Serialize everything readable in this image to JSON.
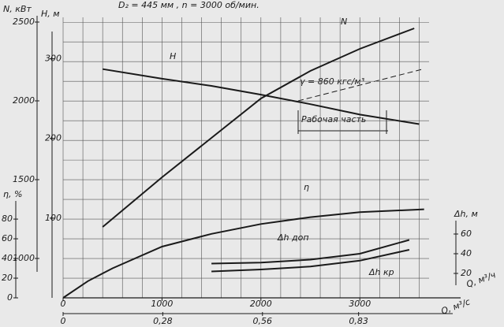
{
  "chart_data": {
    "type": "line",
    "title": "D₂ = 445 мм , n = 3000 об/мин.",
    "x_label": "Q, м³/ч",
    "x2_label": "Q, м³/с",
    "xlim": [
      0,
      3700
    ],
    "xticks": [
      0,
      1000,
      2000,
      3000
    ],
    "xgrid": [
      0,
      200,
      400,
      600,
      800,
      1000,
      1200,
      1400,
      1600,
      1800,
      2000,
      2200,
      2400,
      2600,
      2800,
      3000,
      3200,
      3400,
      3600
    ],
    "x2lim": [
      0,
      1.028
    ],
    "x2ticks": [
      0,
      {
        "value": 0.28,
        "label": "0,28"
      },
      {
        "value": 0.56,
        "label": "0,56"
      },
      {
        "value": 0.83,
        "label": "0,83"
      }
    ],
    "grid": true,
    "annotations": [
      "γ = 860 кгс/м³",
      "Рабочая часть"
    ],
    "axes": [
      {
        "label": "H, м",
        "lim": [
          0,
          352
        ],
        "ticks": [
          100,
          200,
          300
        ],
        "series": [
          {
            "name": "H",
            "color": "#1a1a1a",
            "x": [
              400,
              1000,
              1500,
              2000,
              2500,
              3000,
              3600
            ],
            "values": [
              287,
              275,
              266,
              255,
              243,
              230,
              218
            ]
          }
        ]
      },
      {
        "label": "N, кВт",
        "lim": [
          750,
          2530
        ],
        "ticks": [
          1000,
          1500,
          2000,
          2500
        ],
        "series": [
          {
            "name": "N",
            "color": "#1a1a1a",
            "x": [
              400,
              1000,
              1500,
              2000,
              2500,
              3000,
              3550
            ],
            "values": [
              1200,
              1515,
              1765,
              2015,
              2190,
              2330,
              2460
            ]
          }
        ]
      },
      {
        "label": "η, %",
        "lim": [
          0,
          285
        ],
        "ticks": [
          0,
          20,
          40,
          60,
          80
        ],
        "grid": [
          0,
          20,
          40,
          60,
          80,
          100,
          120,
          140,
          160,
          180,
          200,
          220,
          240,
          260,
          280
        ],
        "series": [
          {
            "name": "η",
            "color": "#1a1a1a",
            "x": [
              0,
              250,
              500,
              1000,
              1500,
              2000,
              2500,
              3000,
              3650
            ],
            "values": [
              0,
              17,
              30,
              52,
              65,
              75,
              82,
              87,
              90
            ]
          }
        ]
      },
      {
        "label": "Δh, м",
        "lim": [
          -4.8,
          280
        ],
        "ticks": [
          20,
          40,
          60
        ],
        "series": [
          {
            "name": "Δh доп",
            "color": "#1a1a1a",
            "x": [
              1500,
              2000,
              2500,
              3000,
              3500
            ],
            "values": [
              30,
              31,
              34,
              40,
              54
            ]
          },
          {
            "name": "Δh кр",
            "color": "#1a1a1a",
            "x": [
              1500,
              2000,
              2500,
              3000,
              3500
            ],
            "values": [
              22,
              24,
              27,
              33,
              44
            ]
          }
        ]
      }
    ]
  }
}
